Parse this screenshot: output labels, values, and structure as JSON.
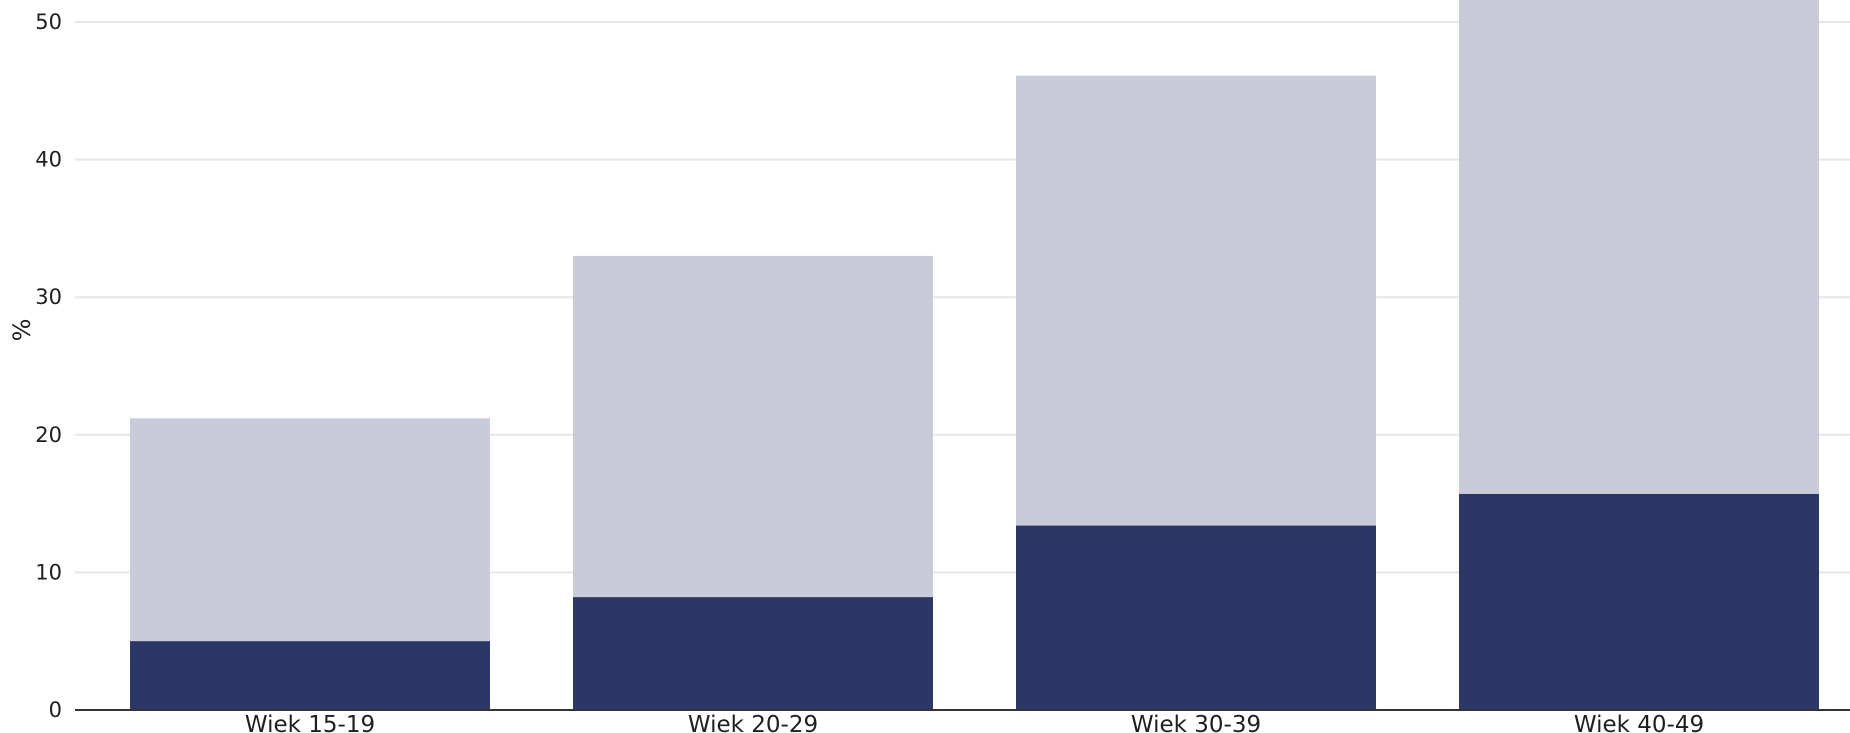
{
  "chart_data": {
    "type": "bar",
    "stacked": false,
    "overlap": true,
    "categories": [
      "Wiek 15-19",
      "Wiek 20-29",
      "Wiek 30-39",
      "Wiek 40-49"
    ],
    "series": [
      {
        "values": [
          21.2,
          33.0,
          46.1,
          52.5
        ],
        "color": "#c9cbd8"
      },
      {
        "values": [
          5.0,
          8.2,
          13.4,
          15.7
        ],
        "color": "#2b3766"
      }
    ],
    "title": "",
    "xlabel": "",
    "ylabel": "%",
    "ylim": [
      0,
      52
    ],
    "yticks": [
      0,
      10,
      20,
      30,
      40,
      50
    ],
    "grid": true,
    "legend": "none"
  },
  "colors": {
    "grid": "#e6e6e6",
    "axis": "#333333",
    "text": "#1f1f1f"
  }
}
